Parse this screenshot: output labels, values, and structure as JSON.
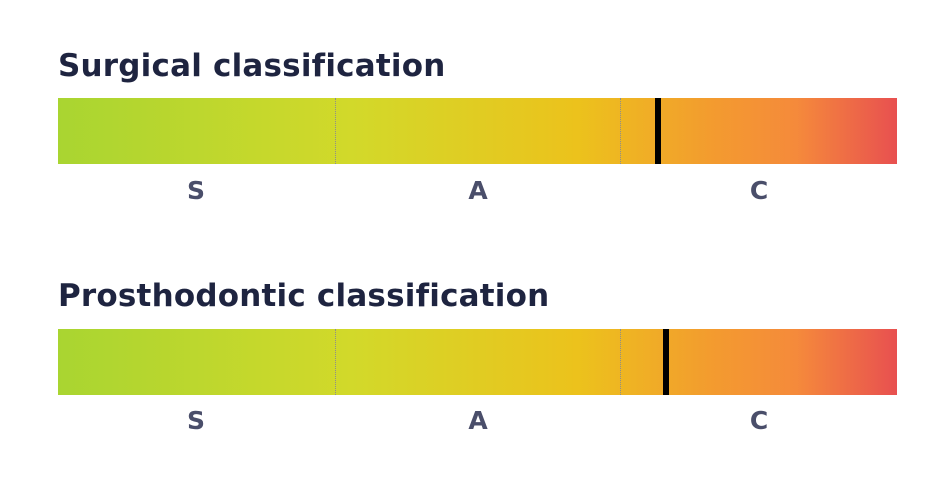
{
  "scales": [
    {
      "title": "Surgical classification",
      "zones": [
        "S",
        "A",
        "C"
      ],
      "boundaries": [
        0.33,
        0.67
      ],
      "marker": 0.715
    },
    {
      "title": "Prosthodontic classification",
      "zones": [
        "S",
        "A",
        "C"
      ],
      "boundaries": [
        0.33,
        0.67
      ],
      "marker": 0.725
    }
  ],
  "gradient_colors": [
    "#a9d531",
    "#d2d92a",
    "#ecc21c",
    "#f39b2f",
    "#f58a3b",
    "#e85050"
  ]
}
